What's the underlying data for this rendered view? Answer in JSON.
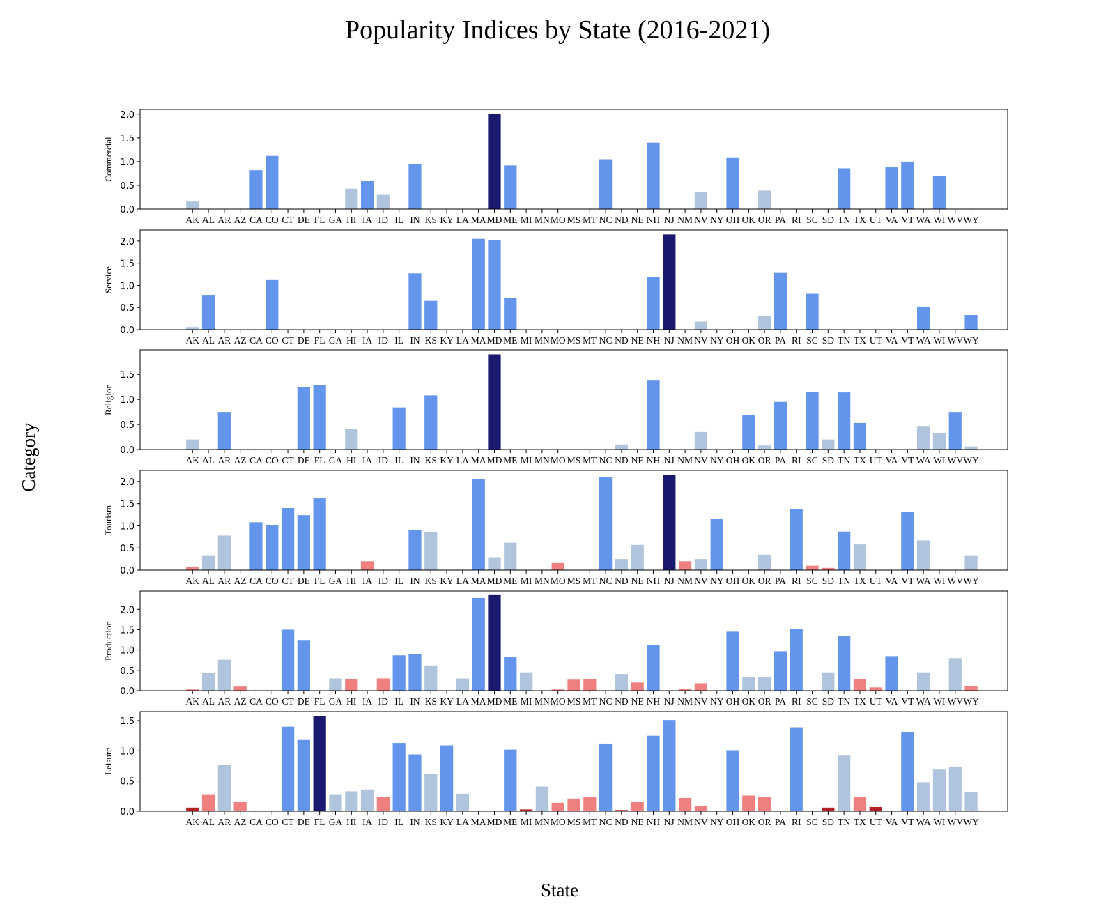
{
  "title": "Popularity Indices by State (2016-2021)",
  "xlabel": "State",
  "ylabel": "Category",
  "colors": {
    "top": "#191970",
    "high": "#6495ED",
    "mid": "#B0C4DE",
    "low": "#F08080",
    "lowest": "#B22222"
  },
  "chart_data": {
    "type": "bar",
    "categories": [
      "AK",
      "AL",
      "AR",
      "AZ",
      "CA",
      "CO",
      "CT",
      "DE",
      "FL",
      "GA",
      "HI",
      "IA",
      "ID",
      "IL",
      "IN",
      "KS",
      "KY",
      "LA",
      "MA",
      "MD",
      "ME",
      "MI",
      "MN",
      "MO",
      "MS",
      "MT",
      "NC",
      "ND",
      "NE",
      "NH",
      "NJ",
      "NM",
      "NV",
      "NY",
      "OH",
      "OK",
      "OR",
      "PA",
      "RI",
      "SC",
      "SD",
      "TN",
      "TX",
      "UT",
      "VA",
      "VT",
      "WA",
      "WI",
      "WV",
      "WY"
    ],
    "series": [
      {
        "name": "Commercial",
        "ylim": [
          0,
          2.1
        ],
        "ticks": [
          "0.0",
          "0.5",
          "1.0",
          "1.5",
          "2.0"
        ],
        "values": [
          0.16,
          0,
          0,
          0,
          0.82,
          1.12,
          0,
          0,
          0,
          0,
          0.43,
          0.6,
          0.3,
          0,
          0.94,
          0,
          0,
          0,
          0,
          2.0,
          0.92,
          0,
          0,
          0,
          0,
          0,
          1.05,
          0,
          0,
          1.4,
          0,
          0,
          0.36,
          0,
          1.09,
          0,
          0.39,
          0,
          0,
          0,
          0,
          0.86,
          0,
          0,
          0.88,
          1.0,
          0,
          0.69,
          0,
          0
        ],
        "levels": [
          "mid",
          "",
          "",
          "",
          "high",
          "high",
          "",
          "",
          "",
          "",
          "mid",
          "high",
          "mid",
          "",
          "high",
          "",
          "",
          "",
          "",
          "top",
          "high",
          "",
          "",
          "",
          "",
          "",
          "high",
          "",
          "",
          "high",
          "",
          "",
          "mid",
          "",
          "high",
          "",
          "mid",
          "",
          "",
          "",
          "",
          "high",
          "",
          "",
          "high",
          "high",
          "",
          "high",
          "",
          ""
        ]
      },
      {
        "name": "Service",
        "ylim": [
          0,
          2.25
        ],
        "ticks": [
          "0.0",
          "0.5",
          "1.0",
          "1.5",
          "2.0"
        ],
        "values": [
          0.06,
          0.77,
          0,
          0,
          0,
          1.12,
          0,
          0,
          0,
          0,
          0,
          0,
          0,
          0,
          1.27,
          0.65,
          0,
          0,
          2.05,
          2.02,
          0.71,
          0,
          0,
          0,
          0,
          0,
          0,
          0,
          0,
          1.18,
          2.15,
          0,
          0.18,
          0,
          0,
          0,
          0.3,
          1.28,
          0,
          0.81,
          0,
          0,
          0,
          0,
          0,
          0,
          0.52,
          0,
          0,
          0.33
        ],
        "levels": [
          "mid",
          "high",
          "",
          "",
          "",
          "high",
          "",
          "",
          "",
          "",
          "",
          "",
          "",
          "",
          "high",
          "high",
          "",
          "",
          "high",
          "high",
          "high",
          "",
          "",
          "",
          "",
          "",
          "",
          "",
          "",
          "high",
          "top",
          "",
          "mid",
          "",
          "",
          "",
          "mid",
          "high",
          "",
          "high",
          "",
          "",
          "",
          "",
          "",
          "",
          "high",
          "",
          "",
          "high"
        ]
      },
      {
        "name": "Religion",
        "ylim": [
          0,
          1.99
        ],
        "ticks": [
          "0.0",
          "0.5",
          "1.0",
          "1.5"
        ],
        "values": [
          0.2,
          0,
          0.75,
          0,
          0,
          0,
          0,
          1.25,
          1.28,
          0,
          0.41,
          0,
          0,
          0.84,
          0,
          1.08,
          0,
          0,
          0,
          1.9,
          0,
          0,
          0,
          0,
          0,
          0,
          0,
          0.1,
          0,
          1.39,
          0,
          0,
          0.35,
          0,
          0,
          0.69,
          0.08,
          0.95,
          0,
          1.15,
          0.2,
          1.14,
          0.53,
          0,
          0,
          0,
          0.47,
          0.33,
          0.75,
          0.06
        ],
        "levels": [
          "mid",
          "",
          "high",
          "",
          "",
          "",
          "",
          "high",
          "high",
          "",
          "mid",
          "",
          "",
          "high",
          "",
          "high",
          "",
          "",
          "",
          "top",
          "",
          "",
          "",
          "",
          "",
          "",
          "",
          "mid",
          "",
          "high",
          "",
          "",
          "mid",
          "",
          "",
          "high",
          "mid",
          "high",
          "",
          "high",
          "mid",
          "high",
          "high",
          "",
          "",
          "",
          "mid",
          "mid",
          "high",
          "mid"
        ]
      },
      {
        "name": "Tourism",
        "ylim": [
          0,
          2.25
        ],
        "ticks": [
          "0.0",
          "0.5",
          "1.0",
          "1.5",
          "2.0"
        ],
        "values": [
          0.08,
          0.32,
          0.78,
          0,
          1.08,
          1.02,
          1.4,
          1.24,
          1.62,
          0,
          0,
          0.2,
          0,
          0,
          0.91,
          0.86,
          0,
          0,
          2.05,
          0.29,
          0.62,
          0,
          0,
          0.16,
          0,
          0,
          2.1,
          0.25,
          0.57,
          0,
          2.15,
          0.2,
          0.25,
          1.16,
          0,
          0,
          0.35,
          0,
          1.37,
          0.1,
          0.05,
          0.87,
          0.58,
          0,
          0,
          1.31,
          0.67,
          0,
          0,
          0.32
        ],
        "levels": [
          "low",
          "mid",
          "mid",
          "",
          "high",
          "high",
          "high",
          "high",
          "high",
          "",
          "",
          "low",
          "",
          "",
          "high",
          "mid",
          "",
          "",
          "high",
          "mid",
          "mid",
          "",
          "",
          "low",
          "",
          "",
          "high",
          "mid",
          "mid",
          "",
          "top",
          "low",
          "mid",
          "high",
          "",
          "",
          "mid",
          "",
          "high",
          "low",
          "low",
          "high",
          "mid",
          "",
          "",
          "high",
          "mid",
          "",
          "",
          "mid"
        ]
      },
      {
        "name": "Production",
        "ylim": [
          0,
          2.45
        ],
        "ticks": [
          "0.0",
          "0.5",
          "1.0",
          "1.5",
          "2.0"
        ],
        "values": [
          0.03,
          0.44,
          0.76,
          0.1,
          0,
          0,
          1.5,
          1.23,
          0,
          0.3,
          0.28,
          0,
          0.3,
          0.87,
          0.9,
          0.62,
          0,
          0.3,
          2.28,
          2.35,
          0.83,
          0.45,
          0,
          0.03,
          0.27,
          0.28,
          0,
          0.41,
          0.2,
          1.12,
          0,
          0.05,
          0.18,
          0,
          1.45,
          0.34,
          0.34,
          0.97,
          1.52,
          0,
          0.45,
          1.35,
          0.28,
          0.08,
          0.85,
          0,
          0.45,
          0,
          0.8,
          0.12
        ],
        "levels": [
          "low",
          "mid",
          "mid",
          "low",
          "",
          "",
          "high",
          "high",
          "",
          "mid",
          "low",
          "",
          "low",
          "high",
          "high",
          "mid",
          "",
          "mid",
          "high",
          "top",
          "high",
          "mid",
          "",
          "low",
          "low",
          "low",
          "",
          "mid",
          "low",
          "high",
          "",
          "low",
          "low",
          "",
          "high",
          "mid",
          "mid",
          "high",
          "high",
          "",
          "mid",
          "high",
          "low",
          "low",
          "high",
          "",
          "mid",
          "",
          "mid",
          "low"
        ]
      },
      {
        "name": "Leisure",
        "ylim": [
          0,
          1.65
        ],
        "ticks": [
          "0.0",
          "0.5",
          "1.0",
          "1.5"
        ],
        "values": [
          0.06,
          0.27,
          0.77,
          0.15,
          0,
          0,
          1.4,
          1.18,
          1.58,
          0.27,
          0.33,
          0.36,
          0.24,
          1.13,
          0.94,
          0.62,
          1.09,
          0.29,
          0,
          0,
          1.02,
          0.03,
          0.41,
          0.14,
          0.21,
          0.24,
          1.12,
          0.02,
          0.15,
          1.25,
          1.51,
          0.22,
          0.09,
          0,
          1.01,
          0.26,
          0.23,
          0,
          1.39,
          0,
          0.06,
          0.92,
          0.24,
          0.07,
          0,
          1.31,
          0.48,
          0.69,
          0.74,
          0.32
        ],
        "levels": [
          "lowest",
          "low",
          "mid",
          "low",
          "",
          "",
          "high",
          "high",
          "top",
          "mid",
          "mid",
          "mid",
          "low",
          "high",
          "high",
          "mid",
          "high",
          "mid",
          "",
          "",
          "high",
          "lowest",
          "mid",
          "low",
          "low",
          "low",
          "high",
          "lowest",
          "low",
          "high",
          "high",
          "low",
          "low",
          "",
          "high",
          "low",
          "low",
          "",
          "high",
          "",
          "lowest",
          "mid",
          "low",
          "lowest",
          "",
          "high",
          "mid",
          "mid",
          "mid",
          "mid"
        ]
      }
    ]
  }
}
